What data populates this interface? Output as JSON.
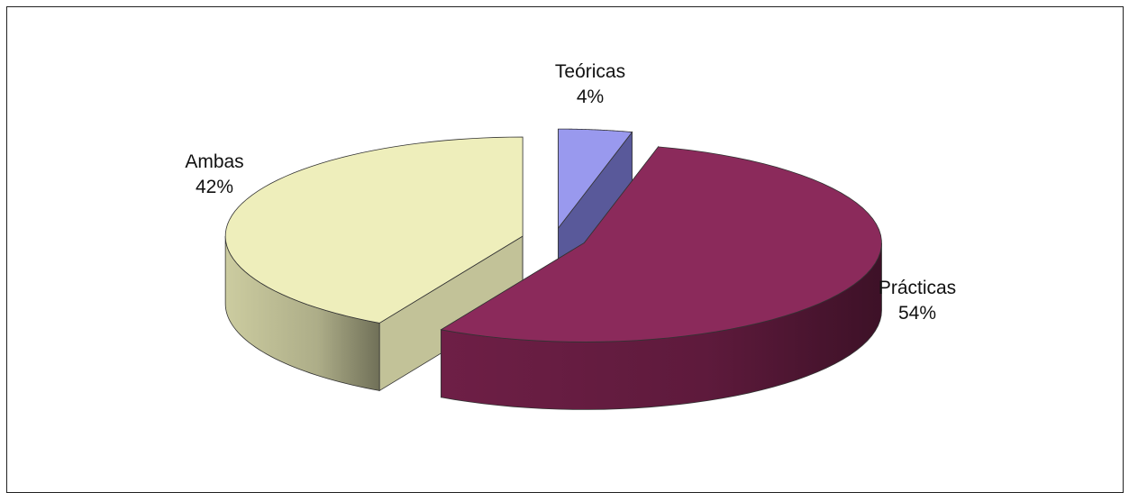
{
  "chart_data": {
    "type": "pie",
    "style": "3d-exploded",
    "title": "",
    "series": [
      {
        "values": [
          4,
          54,
          42
        ]
      }
    ],
    "slices": [
      {
        "label": "Teóricas",
        "value": 4,
        "value_label": "4%",
        "color_top": "#9999ee",
        "color_side": "#6f6fc0"
      },
      {
        "label": "Prácticas",
        "value": 54,
        "value_label": "54%",
        "color_top": "#8b2a5b",
        "color_side": "#6e1f46"
      },
      {
        "label": "Ambas",
        "value": 42,
        "value_label": "42%",
        "color_top": "#eeeebb",
        "color_side": "#cccca0"
      }
    ],
    "legend": "none",
    "data_labels": "outside"
  }
}
